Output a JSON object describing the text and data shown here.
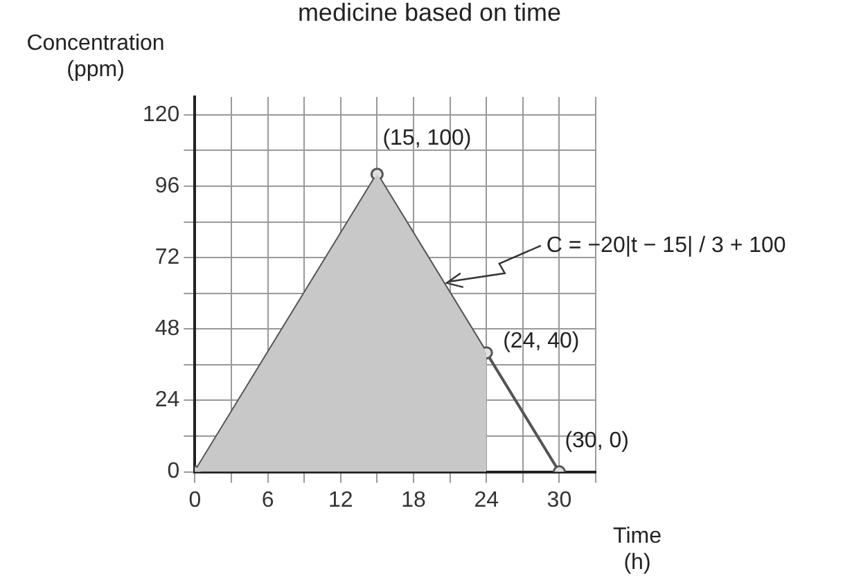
{
  "chart_data": {
    "type": "line",
    "title": "medicine based on time",
    "xlabel": "Time (h)",
    "ylabel": "Concentration (ppm)",
    "xlim": [
      0,
      33
    ],
    "ylim": [
      0,
      126
    ],
    "xticks": [
      0,
      {
        "value": 3,
        "label": null
      },
      6,
      {
        "value": 9,
        "label": null
      },
      12,
      {
        "value": 15,
        "label": null
      },
      18,
      {
        "value": 21,
        "label": null
      },
      24,
      {
        "value": 27,
        "label": null
      },
      30,
      {
        "value": 33,
        "label": null
      }
    ],
    "yticks": [
      0,
      {
        "value": 12,
        "label": null
      },
      24,
      {
        "value": 36,
        "label": null
      },
      48,
      {
        "value": 60,
        "label": null
      },
      72,
      {
        "value": 84,
        "label": null
      },
      96,
      {
        "value": 108,
        "label": null
      },
      120
    ],
    "series": [
      {
        "type": "area",
        "color": "#c8c8c8",
        "x": [
          0,
          15,
          24
        ],
        "values": [
          0,
          100,
          40
        ],
        "marker": "none"
      },
      {
        "type": "line",
        "color": "#555555",
        "x": [
          0,
          15,
          24,
          30
        ],
        "values": [
          0,
          100,
          40,
          0
        ],
        "marker": "circle"
      }
    ],
    "grid": true,
    "legend": false,
    "line_style": "solid",
    "annotations": [
      {
        "text": "(15, 100)",
        "x": 15,
        "y": 100
      },
      {
        "text": "(24, 40)",
        "x": 24,
        "y": 40
      },
      {
        "text": "(30, 0)",
        "x": 30,
        "y": 0
      },
      {
        "text": "C = −20|t − 15| / 3 + 100",
        "x": 20.5,
        "y": 63
      }
    ]
  }
}
